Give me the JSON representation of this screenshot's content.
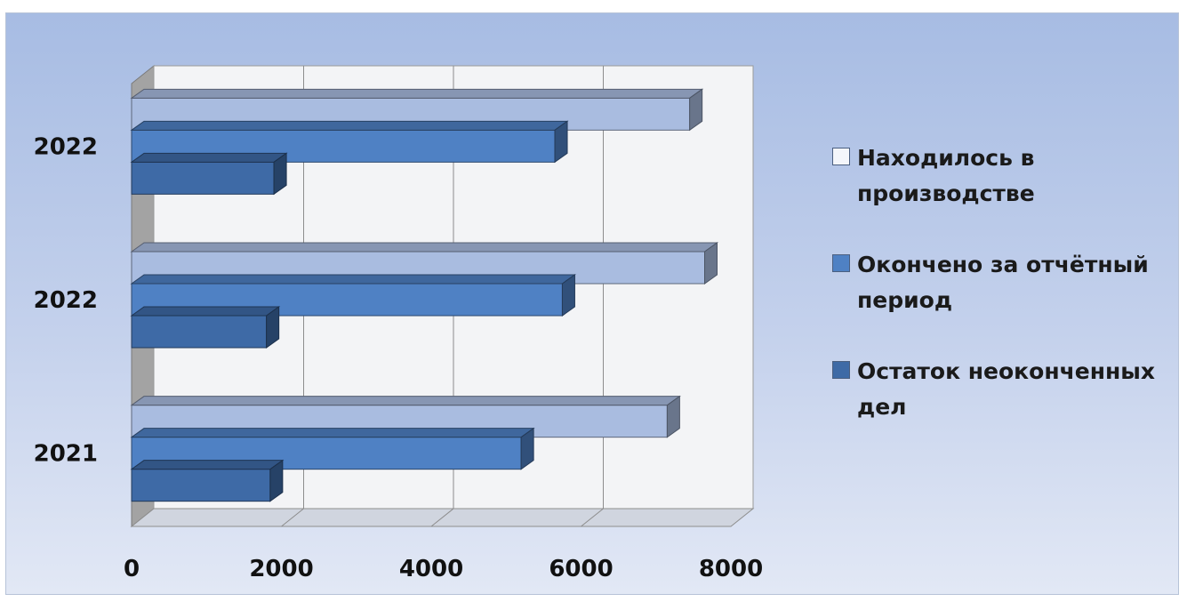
{
  "chart_data": {
    "type": "bar",
    "orientation": "horizontal",
    "categories": [
      "2021",
      "2022",
      "2022"
    ],
    "series": [
      {
        "name": "Находилось в производстве",
        "values": [
          7150,
          7650,
          7450
        ],
        "color": "#a9bce0"
      },
      {
        "name": "Окончено за отчётный период",
        "values": [
          5200,
          5750,
          5650
        ],
        "color": "#4f81c4"
      },
      {
        "name": "Остаток неоконченных дел",
        "values": [
          1850,
          1800,
          1900
        ],
        "color": "#3e6aa6"
      }
    ],
    "xlim": [
      0,
      8000
    ],
    "x_ticks": [
      "0",
      "2000",
      "4000",
      "6000",
      "8000"
    ],
    "grid": true,
    "legend_position": "right"
  }
}
